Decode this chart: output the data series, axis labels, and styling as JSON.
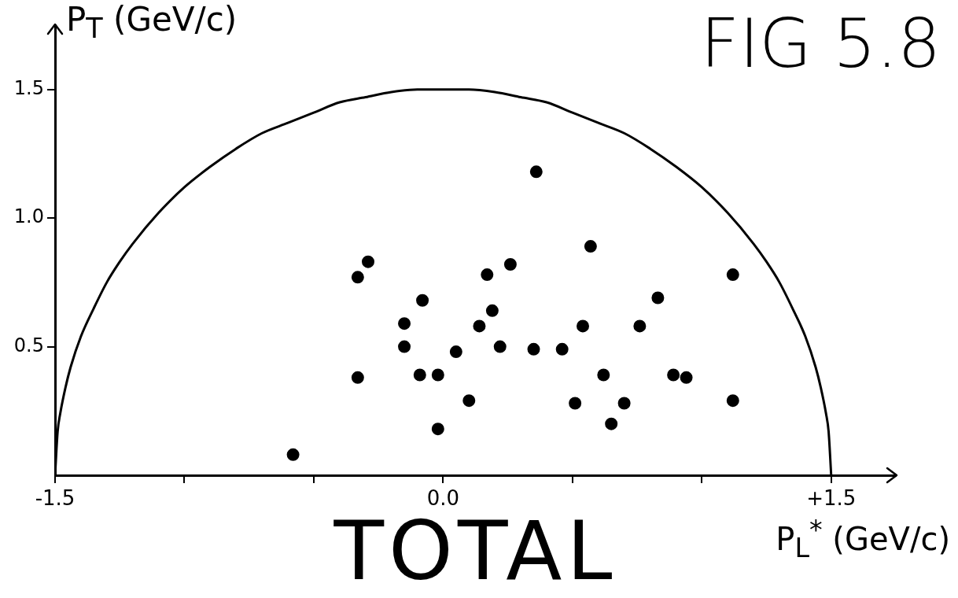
{
  "chart_data": {
    "type": "scatter",
    "title": "FIG 5.8",
    "xlabel": "P$_{L}$$^{*}$ (GeV/c)",
    "ylabel": "P$_{T}$ (GeV/c)",
    "annotations": [
      "TOTAL"
    ],
    "xlim": [
      -1.5,
      1.75
    ],
    "ylim": [
      0,
      1.75
    ],
    "xticks": [
      {
        "value": -1.5,
        "label": "-1.5"
      },
      {
        "value": -1,
        "label": null
      },
      {
        "value": -0.5,
        "label": null
      },
      {
        "value": 0,
        "label": "0.0"
      },
      {
        "value": 0.5,
        "label": null
      },
      {
        "value": 1,
        "label": null
      },
      {
        "value": 1.5,
        "label": "+1.5"
      }
    ],
    "yticks": [
      0.5,
      {
        "value": 1,
        "label": "1.0"
      },
      1.5
    ],
    "series": [
      {
        "type": "line",
        "color": "#000000",
        "marker": "none",
        "line_style": "solid",
        "x": [
          -1.5,
          -1.49,
          -1.48,
          -1.46,
          -1.44,
          -1.4,
          -1.35,
          -1.3,
          -1.25,
          -1.2,
          -1.1,
          -1.0,
          -0.9,
          -0.8,
          -0.7,
          -0.6,
          -0.5,
          -0.4,
          -0.3,
          -0.2,
          -0.1,
          0,
          0.1,
          0.2,
          0.3,
          0.4,
          0.5,
          0.6,
          0.7,
          0.8,
          0.9,
          1.0,
          1.1,
          1.2,
          1.25,
          1.3,
          1.35,
          1.4,
          1.44,
          1.46,
          1.48,
          1.49,
          1.5
        ],
        "values": [
          0,
          0.17,
          0.24,
          0.34,
          0.42,
          0.54,
          0.65,
          0.75,
          0.83,
          0.9,
          1.02,
          1.12,
          1.2,
          1.27,
          1.33,
          1.37,
          1.41,
          1.45,
          1.47,
          1.49,
          1.5,
          1.5,
          1.5,
          1.49,
          1.47,
          1.45,
          1.41,
          1.37,
          1.33,
          1.27,
          1.2,
          1.12,
          1.02,
          0.9,
          0.83,
          0.75,
          0.65,
          0.54,
          0.42,
          0.34,
          0.24,
          0.17,
          0
        ]
      },
      {
        "color": "#000000",
        "marker": "circle",
        "x": [
          -0.58,
          -0.33,
          -0.29,
          -0.33,
          -0.15,
          -0.15,
          -0.09,
          -0.08,
          -0.02,
          -0.02,
          0.05,
          0.1,
          0.14,
          0.17,
          0.19,
          0.22,
          0.26,
          0.35,
          0.36,
          0.46,
          0.51,
          0.54,
          0.57,
          0.62,
          0.65,
          0.7,
          0.76,
          0.83,
          0.89,
          0.94,
          1.12,
          1.12
        ],
        "values": [
          0.08,
          0.77,
          0.83,
          0.38,
          0.59,
          0.5,
          0.39,
          0.68,
          0.18,
          0.39,
          0.48,
          0.29,
          0.58,
          0.78,
          0.64,
          0.5,
          0.82,
          0.49,
          1.18,
          0.49,
          0.28,
          0.58,
          0.89,
          0.39,
          0.2,
          0.28,
          0.58,
          0.69,
          0.39,
          0.38,
          0.78,
          0.29
        ]
      }
    ]
  }
}
